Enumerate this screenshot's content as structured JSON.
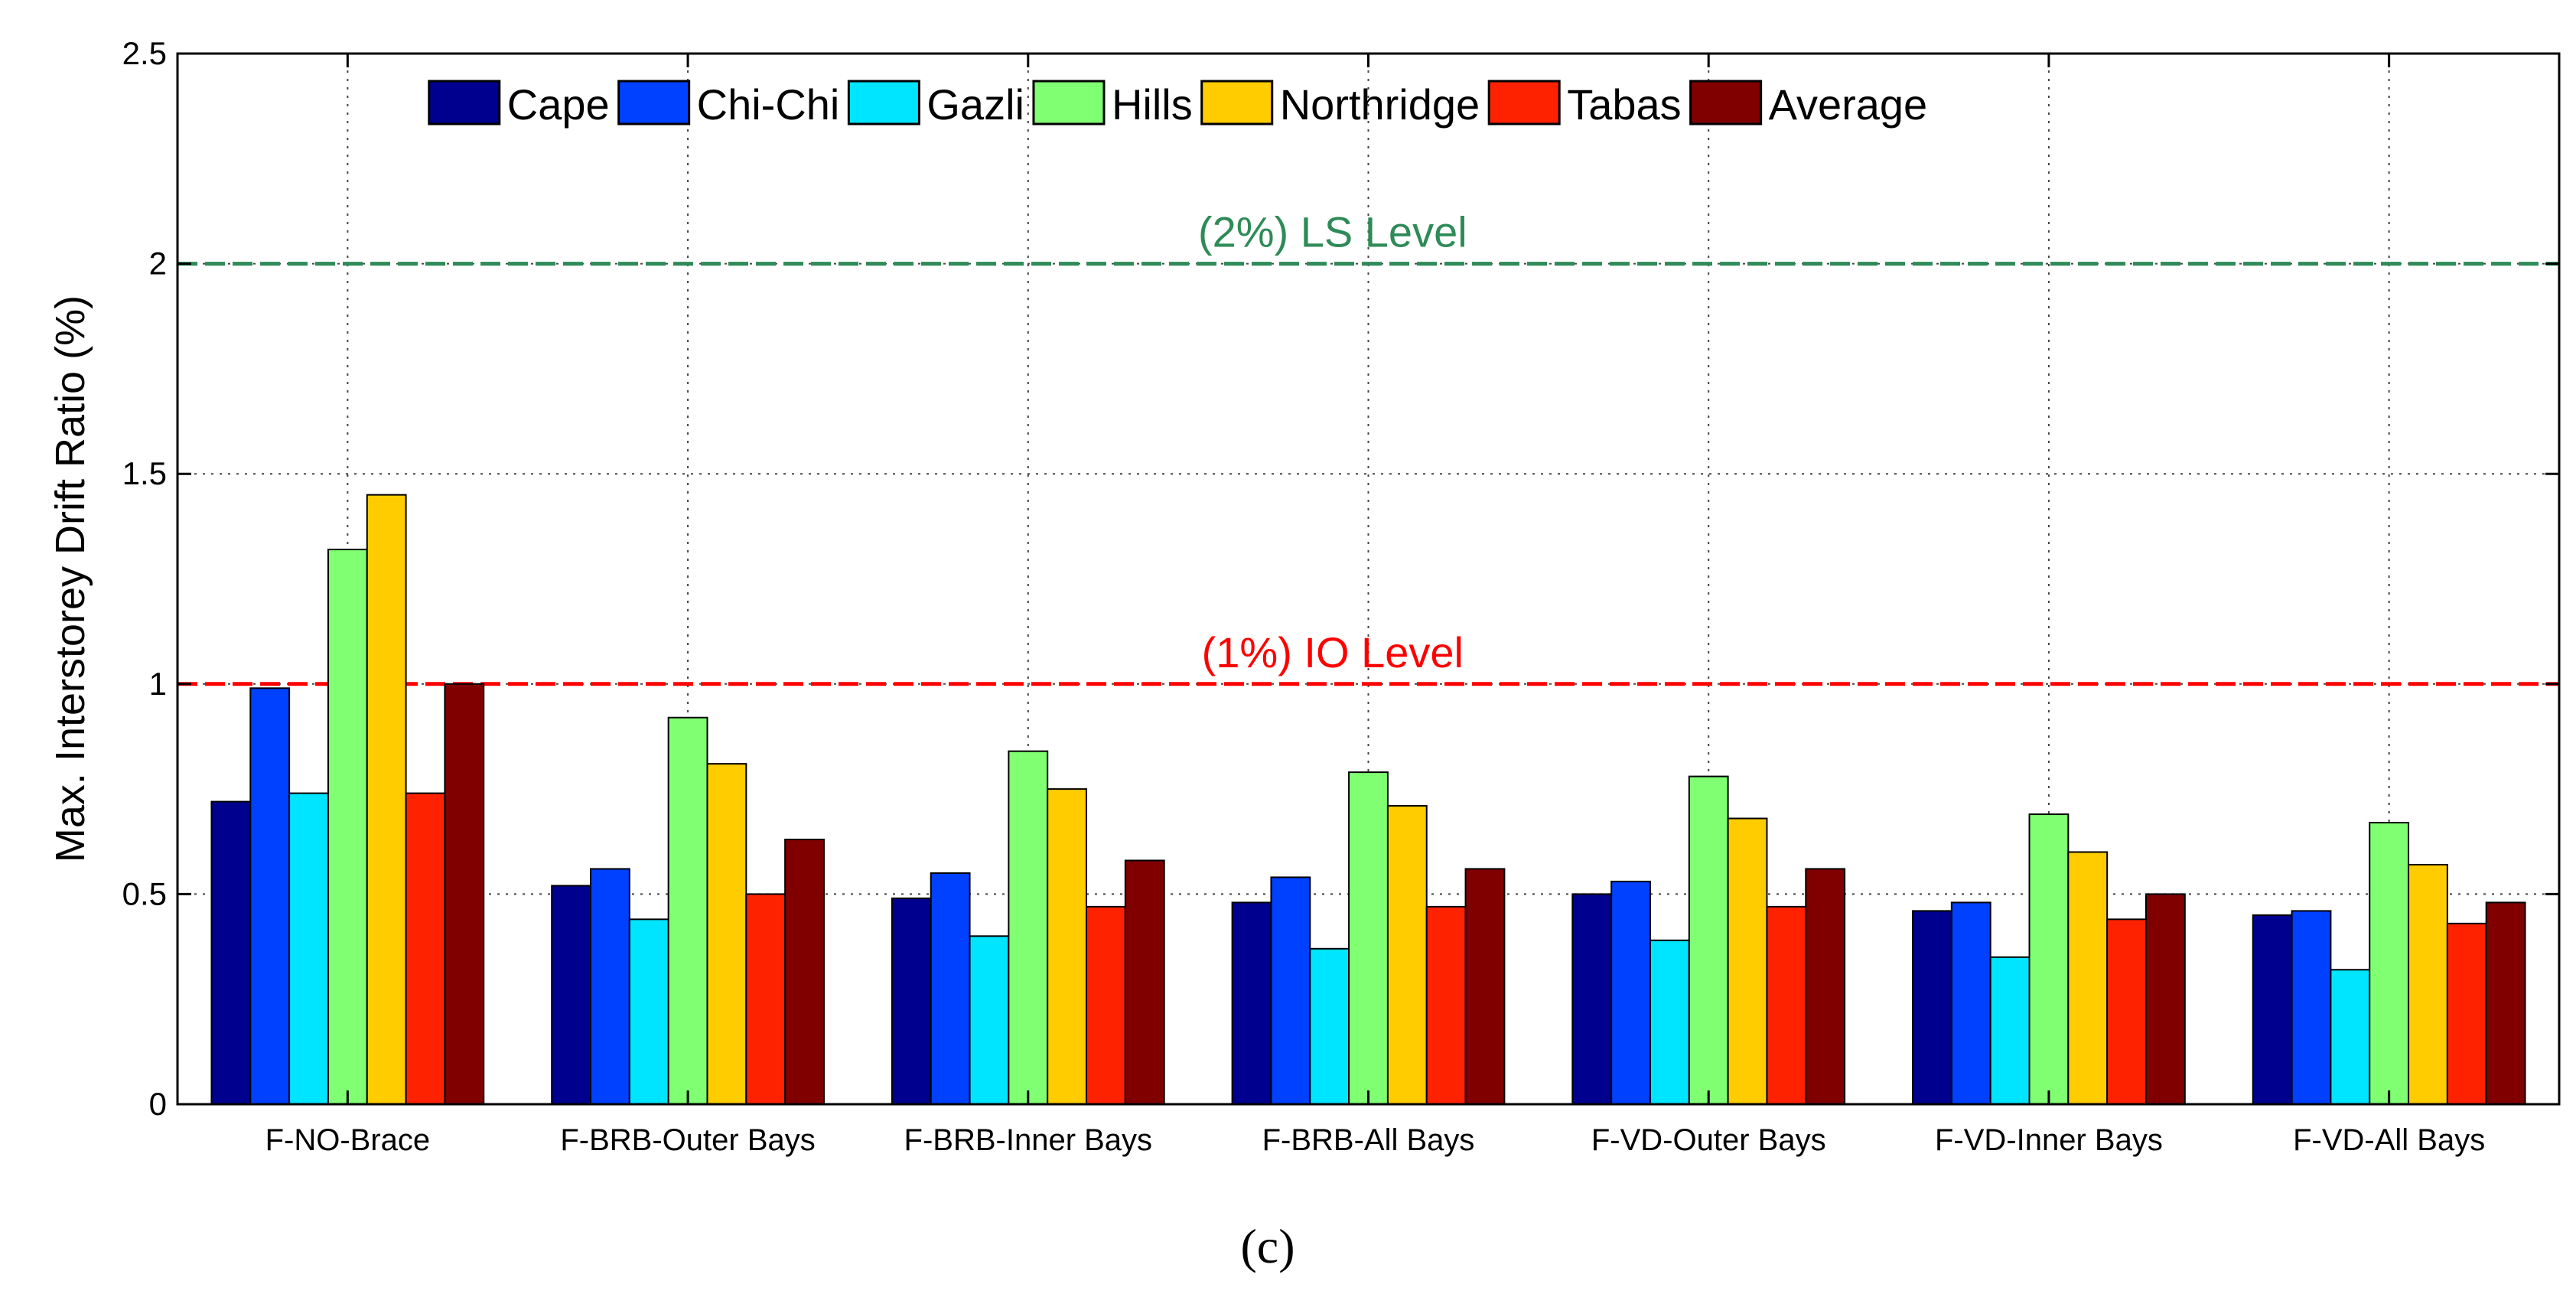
{
  "chart_data": {
    "type": "bar",
    "title": "",
    "xlabel": "",
    "ylabel": "Max. Interstorey Drift Ratio (%)",
    "ylim": [
      0,
      2.5
    ],
    "yticks": [
      "0",
      "0.5",
      "1",
      "1.5",
      "2",
      "2.5"
    ],
    "grid": true,
    "legend_position": "top-center",
    "categories": [
      "F-NO-Brace",
      "F-BRB-Outer Bays",
      "F-BRB-Inner Bays",
      "F-BRB-All Bays",
      "F-VD-Outer Bays",
      "F-VD-Inner Bays",
      "F-VD-All Bays"
    ],
    "series": [
      {
        "name": "Cape",
        "color": "#00008f",
        "values": [
          0.72,
          0.52,
          0.49,
          0.48,
          0.5,
          0.46,
          0.45
        ]
      },
      {
        "name": "Chi-Chi",
        "color": "#0040ff",
        "values": [
          0.99,
          0.56,
          0.55,
          0.54,
          0.53,
          0.48,
          0.46
        ]
      },
      {
        "name": "Gazli",
        "color": "#00e5ff",
        "values": [
          0.74,
          0.44,
          0.4,
          0.37,
          0.39,
          0.35,
          0.32
        ]
      },
      {
        "name": "Hills",
        "color": "#80ff73",
        "values": [
          1.32,
          0.92,
          0.84,
          0.79,
          0.78,
          0.69,
          0.67
        ]
      },
      {
        "name": "Northridge",
        "color": "#ffcc00",
        "values": [
          1.45,
          0.81,
          0.75,
          0.71,
          0.68,
          0.6,
          0.57
        ]
      },
      {
        "name": "Tabas",
        "color": "#ff2200",
        "values": [
          0.74,
          0.5,
          0.47,
          0.47,
          0.47,
          0.44,
          0.43
        ]
      },
      {
        "name": "Average",
        "color": "#800000",
        "values": [
          1.0,
          0.63,
          0.58,
          0.56,
          0.56,
          0.5,
          0.48
        ]
      }
    ],
    "reference_lines": [
      {
        "name": "LS Level",
        "label": "(2%) LS Level",
        "value": 2.0,
        "color": "#2e8b57"
      },
      {
        "name": "IO Level",
        "label": "(1%) IO Level",
        "value": 1.0,
        "color": "#ff0000"
      }
    ],
    "caption": "(c)"
  }
}
